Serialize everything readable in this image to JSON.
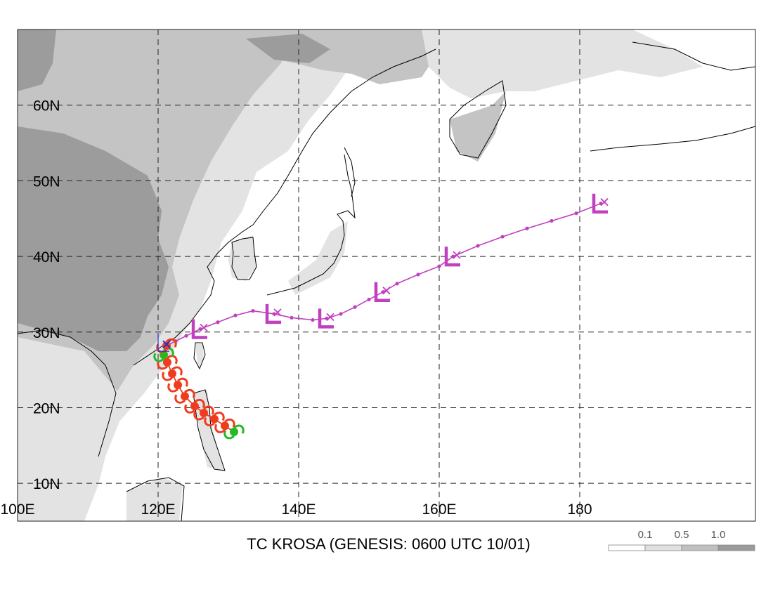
{
  "map": {
    "title": "TC KROSA (GENESIS: 0600 UTC 10/01)",
    "lon_labels": [
      {
        "lon": 100,
        "text": "100E"
      },
      {
        "lon": 120,
        "text": "120E"
      },
      {
        "lon": 140,
        "text": "140E"
      },
      {
        "lon": 160,
        "text": "160E"
      },
      {
        "lon": 180,
        "text": "180"
      }
    ],
    "lat_labels": [
      {
        "lat": 60,
        "text": "60N"
      },
      {
        "lat": 50,
        "text": "50N"
      },
      {
        "lat": 40,
        "text": "40N"
      },
      {
        "lat": 30,
        "text": "30N"
      },
      {
        "lat": 20,
        "text": "20N"
      },
      {
        "lat": 10,
        "text": "10N"
      }
    ],
    "extent": {
      "lon_min": 100,
      "lon_max": 205,
      "lat_min": 5,
      "lat_max": 70
    },
    "legend": {
      "labels": [
        "0.1",
        "0.5",
        "1.0"
      ],
      "colors": [
        "#ffffff",
        "#e0e0e0",
        "#c0c0c0",
        "#9a9a9a"
      ]
    },
    "colors": {
      "extratropical_track": "#c040c0",
      "typhoon_track": "#f03c1e",
      "genesis_symbol": "#22bb22",
      "low_marker": "#2233cc",
      "terrain_light": "#e3e3e3",
      "terrain_mid": "#c4c4c4",
      "terrain_dark": "#9c9c9c"
    },
    "tracks": {
      "extratropical": [
        [
          121.2,
          28.2
        ],
        [
          122.5,
          28.8
        ],
        [
          124.0,
          29.5
        ],
        [
          126.0,
          30.4
        ],
        [
          128.5,
          31.3
        ],
        [
          131.0,
          32.2
        ],
        [
          133.5,
          32.8
        ],
        [
          136.5,
          32.4
        ],
        [
          139.0,
          31.9
        ],
        [
          142.0,
          31.6
        ],
        [
          144.0,
          31.8
        ],
        [
          146.0,
          32.4
        ],
        [
          148.0,
          33.3
        ],
        [
          150.0,
          34.3
        ],
        [
          152.0,
          35.3
        ],
        [
          154.0,
          36.4
        ],
        [
          157.0,
          37.6
        ],
        [
          160.0,
          38.7
        ],
        [
          162.0,
          40.0
        ],
        [
          165.5,
          41.4
        ],
        [
          169.0,
          42.6
        ],
        [
          172.5,
          43.7
        ],
        [
          176.0,
          44.7
        ],
        [
          179.5,
          45.7
        ],
        [
          183.0,
          47.0
        ]
      ],
      "extratropical_symbol_icons": [
        "L-letter",
        "x-mark"
      ],
      "typhoon": [
        [
          130.8,
          16.8
        ],
        [
          129.5,
          17.6
        ],
        [
          128.0,
          18.5
        ],
        [
          126.5,
          19.3
        ],
        [
          125.2,
          20.2
        ],
        [
          123.8,
          21.5
        ],
        [
          122.8,
          23.0
        ],
        [
          122.0,
          24.5
        ],
        [
          121.3,
          26.0
        ],
        [
          120.8,
          27.0
        ],
        [
          121.2,
          28.2
        ]
      ],
      "typhoon_symbol_icon": "typhoon-symbol"
    }
  }
}
